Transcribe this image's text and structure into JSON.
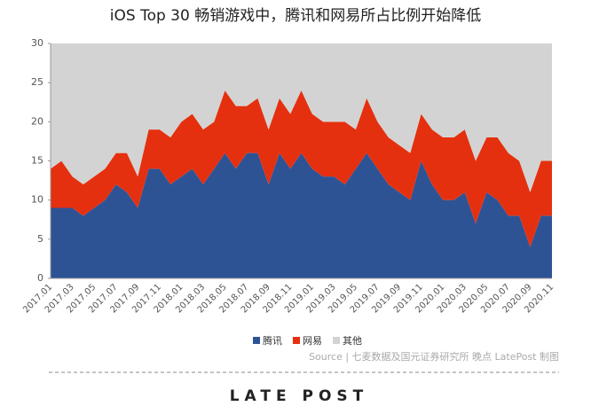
{
  "chart_data": {
    "type": "stacked_area",
    "title": "iOS Top 30 畅销游戏中，腾讯和网易所占比例开始降低",
    "categories": [
      "2017.01",
      null,
      "2017.03",
      null,
      "2017.05",
      null,
      "2017.07",
      null,
      "2017.09",
      null,
      "2017.11",
      null,
      "2018.01",
      null,
      "2018.03",
      null,
      "2018.05",
      null,
      "2018.07",
      null,
      "2018.09",
      null,
      "2018.11",
      null,
      "2019.01",
      null,
      "2019.03",
      null,
      "2019.05",
      null,
      "2019.07",
      null,
      "2019.09",
      null,
      "2019.11",
      null,
      "2020.01",
      null,
      "2020.03",
      null,
      "2020.05",
      null,
      "2020.07",
      null,
      "2020.09",
      null,
      "2020.11"
    ],
    "series": [
      {
        "name": "腾讯",
        "color": "#2e5395",
        "values": [
          9,
          9,
          9,
          8,
          9,
          10,
          12,
          11,
          9,
          14,
          14,
          12,
          13,
          14,
          12,
          14,
          16,
          14,
          16,
          16,
          12,
          16,
          14,
          16,
          14,
          13,
          13,
          12,
          14,
          16,
          14,
          12,
          11,
          10,
          15,
          12,
          10,
          10,
          11,
          7,
          11,
          10,
          8,
          8,
          4,
          8,
          8
        ]
      },
      {
        "name": "网易",
        "color": "#e5300f",
        "values": [
          5,
          6,
          4,
          4,
          4,
          4,
          4,
          5,
          4,
          5,
          5,
          6,
          7,
          7,
          7,
          6,
          8,
          8,
          6,
          7,
          7,
          7,
          7,
          8,
          7,
          7,
          7,
          8,
          5,
          7,
          6,
          6,
          6,
          6,
          6,
          7,
          8,
          8,
          8,
          8,
          7,
          8,
          8,
          7,
          7,
          7,
          7
        ]
      },
      {
        "name": "其他",
        "color": "#d3d3d3",
        "values": [
          16,
          15,
          17,
          18,
          17,
          16,
          14,
          14,
          17,
          11,
          11,
          12,
          10,
          9,
          11,
          10,
          6,
          8,
          8,
          7,
          11,
          7,
          9,
          6,
          9,
          10,
          10,
          10,
          11,
          7,
          10,
          12,
          13,
          14,
          9,
          11,
          12,
          12,
          11,
          15,
          12,
          12,
          14,
          15,
          19,
          15,
          15
        ]
      }
    ],
    "ylim": [
      0,
      30
    ],
    "yticks": [
      0,
      5,
      10,
      15,
      20,
      25,
      30
    ],
    "grid": false,
    "source": "Source | 七麦数据及国元证券研究所  晚点 LatePost 制图",
    "logo": "LATE POST"
  }
}
